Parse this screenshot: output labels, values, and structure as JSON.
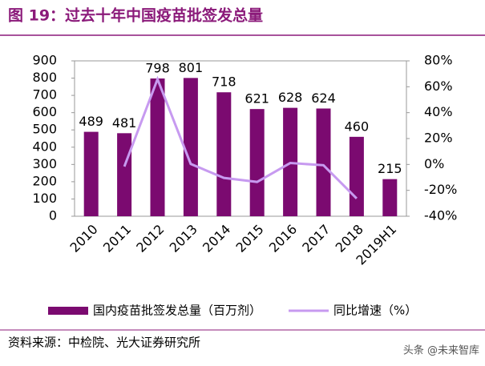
{
  "chart_data": {
    "type": "bar",
    "title": "图 19：过去十年中国疫苗批签发总量",
    "categories": [
      "2010",
      "2011",
      "2012",
      "2013",
      "2014",
      "2015",
      "2016",
      "2017",
      "2018",
      "2019H1"
    ],
    "series": [
      {
        "name": "国内疫苗批签发总量（百万剂）",
        "type": "bar",
        "color": "#7b0a70",
        "values": [
          489,
          481,
          798,
          801,
          718,
          621,
          628,
          624,
          460,
          215
        ]
      },
      {
        "name": "同比增速（%）",
        "type": "line",
        "axis": "y2",
        "color": "#c79af0",
        "values": [
          null,
          -1.6,
          65.9,
          0.4,
          -10.4,
          -13.5,
          1.1,
          -0.6,
          -26.3,
          null
        ]
      }
    ],
    "ylim": [
      0,
      900
    ],
    "yticks": [
      0,
      100,
      200,
      300,
      400,
      500,
      600,
      700,
      800,
      900
    ],
    "y2lim": [
      -40,
      80
    ],
    "y2ticks": [
      {
        "value": -40,
        "label": "-40%"
      },
      {
        "value": -20,
        "label": "-20%"
      },
      {
        "value": 0,
        "label": "0%"
      },
      {
        "value": 20,
        "label": "20%"
      },
      {
        "value": 40,
        "label": "40%"
      },
      {
        "value": 60,
        "label": "60%"
      },
      {
        "value": 80,
        "label": "80%"
      }
    ],
    "source": "资料来源：中检院、光大证券研究所",
    "watermark": "头条 @未来智库"
  }
}
